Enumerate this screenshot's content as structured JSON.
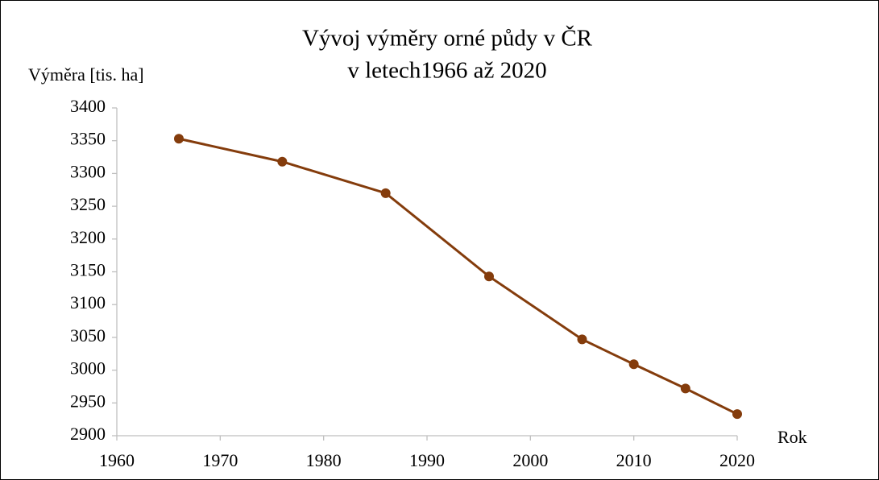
{
  "chart_data": {
    "type": "line",
    "title": "Vývoj výměry orné půdy v ČR",
    "subtitle": "v letech1966 až 2020",
    "y_label": "Výměra [tis. ha]",
    "x_label": "Rok",
    "x": [
      1966,
      1976,
      1986,
      1996,
      2005,
      2010,
      2015,
      2020
    ],
    "series": [
      {
        "name": "Výměra",
        "color": "#843c0c",
        "values": [
          3353,
          3318,
          3270,
          3143,
          3047,
          3009,
          2972,
          2933
        ]
      }
    ],
    "xlim": [
      1960,
      2020
    ],
    "xticks": [
      1960,
      1970,
      1980,
      1990,
      2000,
      2010,
      2020
    ],
    "ylim": [
      2900,
      3400
    ],
    "yticks": [
      2900,
      2950,
      3000,
      3050,
      3100,
      3150,
      3200,
      3250,
      3300,
      3350,
      3400
    ],
    "grid": false
  }
}
